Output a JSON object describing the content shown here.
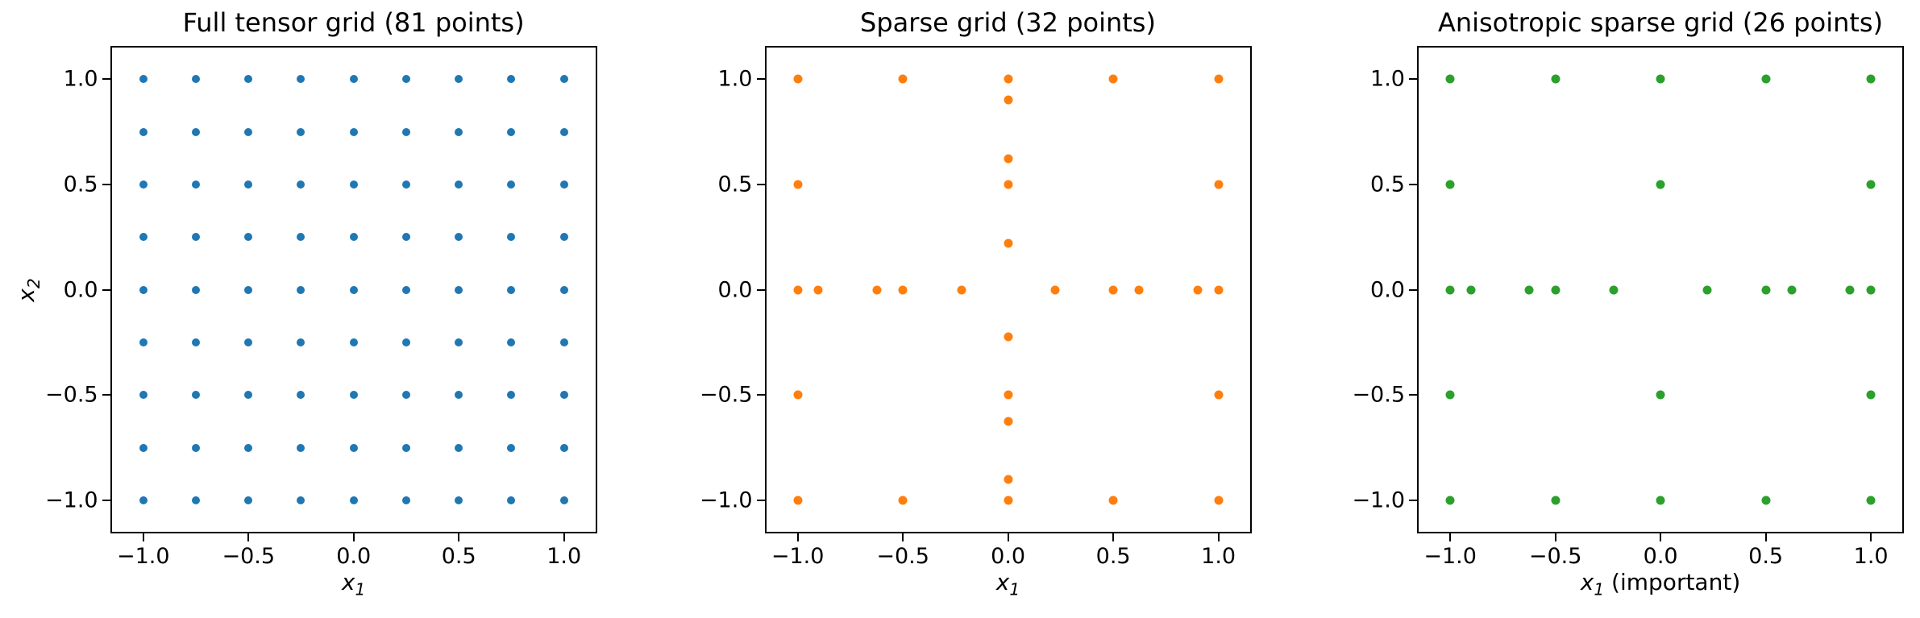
{
  "figure": {
    "background": "#ffffff"
  },
  "colors": {
    "blue": "#1f77b4",
    "orange": "#ff7f0e",
    "green": "#2ca02c",
    "axis": "#000000"
  },
  "chart_data": [
    {
      "type": "scatter",
      "title": "Full tensor grid (81 points)",
      "xlabel": {
        "var": "x",
        "sub": "1",
        "note": ""
      },
      "ylabel": {
        "var": "x",
        "sub": "2"
      },
      "color": "#1f77b4",
      "marker_radius_px": 5,
      "xlim": [
        -1.15,
        1.15
      ],
      "ylim": [
        -1.15,
        1.15
      ],
      "xticks": {
        "values": [
          -1.0,
          -0.5,
          0.0,
          0.5,
          1.0
        ],
        "labels": [
          "−1.0",
          "−0.5",
          "0.0",
          "0.5",
          "1.0"
        ]
      },
      "yticks": {
        "values": [
          -1.0,
          -0.5,
          0.0,
          0.5,
          1.0
        ],
        "labels": [
          "−1.0",
          "−0.5",
          "0.0",
          "0.5",
          "1.0"
        ]
      },
      "points": [
        [
          -1,
          -1
        ],
        [
          -1,
          -0.75
        ],
        [
          -1,
          -0.5
        ],
        [
          -1,
          -0.25
        ],
        [
          -1,
          0
        ],
        [
          -1,
          0.25
        ],
        [
          -1,
          0.5
        ],
        [
          -1,
          0.75
        ],
        [
          -1,
          1
        ],
        [
          -0.75,
          -1
        ],
        [
          -0.75,
          -0.75
        ],
        [
          -0.75,
          -0.5
        ],
        [
          -0.75,
          -0.25
        ],
        [
          -0.75,
          0
        ],
        [
          -0.75,
          0.25
        ],
        [
          -0.75,
          0.5
        ],
        [
          -0.75,
          0.75
        ],
        [
          -0.75,
          1
        ],
        [
          -0.5,
          -1
        ],
        [
          -0.5,
          -0.75
        ],
        [
          -0.5,
          -0.5
        ],
        [
          -0.5,
          -0.25
        ],
        [
          -0.5,
          0
        ],
        [
          -0.5,
          0.25
        ],
        [
          -0.5,
          0.5
        ],
        [
          -0.5,
          0.75
        ],
        [
          -0.5,
          1
        ],
        [
          -0.25,
          -1
        ],
        [
          -0.25,
          -0.75
        ],
        [
          -0.25,
          -0.5
        ],
        [
          -0.25,
          -0.25
        ],
        [
          -0.25,
          0
        ],
        [
          -0.25,
          0.25
        ],
        [
          -0.25,
          0.5
        ],
        [
          -0.25,
          0.75
        ],
        [
          -0.25,
          1
        ],
        [
          0,
          -1
        ],
        [
          0,
          -0.75
        ],
        [
          0,
          -0.5
        ],
        [
          0,
          -0.25
        ],
        [
          0,
          0
        ],
        [
          0,
          0.25
        ],
        [
          0,
          0.5
        ],
        [
          0,
          0.75
        ],
        [
          0,
          1
        ],
        [
          0.25,
          -1
        ],
        [
          0.25,
          -0.75
        ],
        [
          0.25,
          -0.5
        ],
        [
          0.25,
          -0.25
        ],
        [
          0.25,
          0
        ],
        [
          0.25,
          0.25
        ],
        [
          0.25,
          0.5
        ],
        [
          0.25,
          0.75
        ],
        [
          0.25,
          1
        ],
        [
          0.5,
          -1
        ],
        [
          0.5,
          -0.75
        ],
        [
          0.5,
          -0.5
        ],
        [
          0.5,
          -0.25
        ],
        [
          0.5,
          0
        ],
        [
          0.5,
          0.25
        ],
        [
          0.5,
          0.5
        ],
        [
          0.5,
          0.75
        ],
        [
          0.5,
          1
        ],
        [
          0.75,
          -1
        ],
        [
          0.75,
          -0.75
        ],
        [
          0.75,
          -0.5
        ],
        [
          0.75,
          -0.25
        ],
        [
          0.75,
          0
        ],
        [
          0.75,
          0.25
        ],
        [
          0.75,
          0.5
        ],
        [
          0.75,
          0.75
        ],
        [
          0.75,
          1
        ],
        [
          1,
          -1
        ],
        [
          1,
          -0.75
        ],
        [
          1,
          -0.5
        ],
        [
          1,
          -0.25
        ],
        [
          1,
          0
        ],
        [
          1,
          0.25
        ],
        [
          1,
          0.5
        ],
        [
          1,
          0.75
        ],
        [
          1,
          1
        ]
      ]
    },
    {
      "type": "scatter",
      "title": "Sparse grid (32 points)",
      "xlabel": {
        "var": "x",
        "sub": "1",
        "note": ""
      },
      "color": "#ff7f0e",
      "marker_radius_px": 5.5,
      "xlim": [
        -1.15,
        1.15
      ],
      "ylim": [
        -1.15,
        1.15
      ],
      "xticks": {
        "values": [
          -1.0,
          -0.5,
          0.0,
          0.5,
          1.0
        ],
        "labels": [
          "−1.0",
          "−0.5",
          "0.0",
          "0.5",
          "1.0"
        ]
      },
      "yticks": {
        "values": [
          -1.0,
          -0.5,
          0.0,
          0.5,
          1.0
        ],
        "labels": [
          "−1.0",
          "−0.5",
          "0.0",
          "0.5",
          "1.0"
        ]
      },
      "points": [
        [
          -1,
          1
        ],
        [
          -0.5,
          1
        ],
        [
          0,
          1
        ],
        [
          0.5,
          1
        ],
        [
          1,
          1
        ],
        [
          0,
          0.901
        ],
        [
          0,
          0.6235
        ],
        [
          -1,
          0.5
        ],
        [
          0,
          0.5
        ],
        [
          1,
          0.5
        ],
        [
          0,
          0.2225
        ],
        [
          -1,
          0
        ],
        [
          -0.901,
          0
        ],
        [
          -0.6235,
          0
        ],
        [
          -0.5,
          0
        ],
        [
          -0.2225,
          0
        ],
        [
          0.2225,
          0
        ],
        [
          0.5,
          0
        ],
        [
          0.6235,
          0
        ],
        [
          0.901,
          0
        ],
        [
          1,
          0
        ],
        [
          0,
          -0.2225
        ],
        [
          -1,
          -0.5
        ],
        [
          0,
          -0.5
        ],
        [
          1,
          -0.5
        ],
        [
          0,
          -0.6235
        ],
        [
          0,
          -0.901
        ],
        [
          -1,
          -1
        ],
        [
          -0.5,
          -1
        ],
        [
          0,
          -1
        ],
        [
          0.5,
          -1
        ],
        [
          1,
          -1
        ]
      ]
    },
    {
      "type": "scatter",
      "title": "Anisotropic sparse grid (26 points)",
      "xlabel": {
        "var": "x",
        "sub": "1",
        "note": " (important)"
      },
      "color": "#2ca02c",
      "marker_radius_px": 5.5,
      "xlim": [
        -1.15,
        1.15
      ],
      "ylim": [
        -1.15,
        1.15
      ],
      "xticks": {
        "values": [
          -1.0,
          -0.5,
          0.0,
          0.5,
          1.0
        ],
        "labels": [
          "−1.0",
          "−0.5",
          "0.0",
          "0.5",
          "1.0"
        ]
      },
      "yticks": {
        "values": [
          -1.0,
          -0.5,
          0.0,
          0.5,
          1.0
        ],
        "labels": [
          "−1.0",
          "−0.5",
          "0.0",
          "0.5",
          "1.0"
        ]
      },
      "points": [
        [
          -1,
          1
        ],
        [
          -0.5,
          1
        ],
        [
          0,
          1
        ],
        [
          0.5,
          1
        ],
        [
          1,
          1
        ],
        [
          -1,
          0.5
        ],
        [
          0,
          0.5
        ],
        [
          1,
          0.5
        ],
        [
          -1,
          0
        ],
        [
          -0.901,
          0
        ],
        [
          -0.6235,
          0
        ],
        [
          -0.5,
          0
        ],
        [
          -0.2225,
          0
        ],
        [
          0.2225,
          0
        ],
        [
          0.5,
          0
        ],
        [
          0.6235,
          0
        ],
        [
          0.901,
          0
        ],
        [
          1,
          0
        ],
        [
          -1,
          -0.5
        ],
        [
          0,
          -0.5
        ],
        [
          1,
          -0.5
        ],
        [
          -1,
          -1
        ],
        [
          -0.5,
          -1
        ],
        [
          0,
          -1
        ],
        [
          0.5,
          -1
        ],
        [
          1,
          -1
        ]
      ]
    }
  ]
}
